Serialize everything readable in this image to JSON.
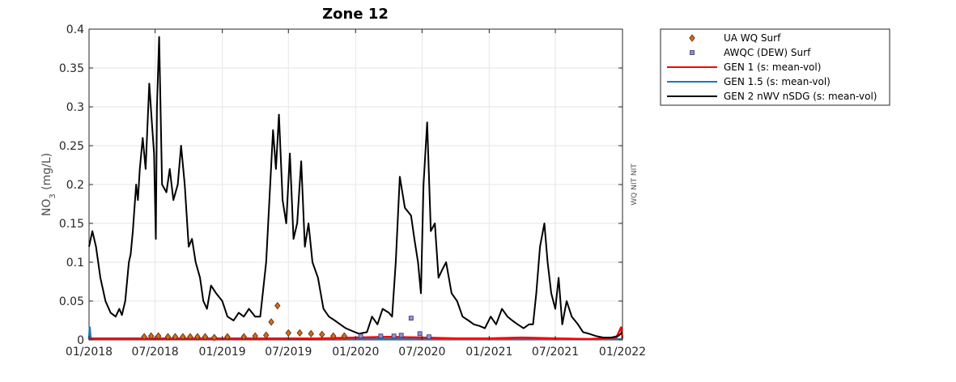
{
  "chart_data": {
    "type": "line",
    "title": "Zone 12",
    "ylabel_base": "NO",
    "ylabel_sub": "3",
    "ylabel_unit": " (mg/L)",
    "side_label": "WQ NIT NIT",
    "ylim": [
      0,
      0.4
    ],
    "yticks": [
      0,
      0.05,
      0.1,
      0.15,
      0.2,
      0.25,
      0.3,
      0.35,
      0.4
    ],
    "ytick_labels": [
      "0",
      "0.05",
      "0.1",
      "0.15",
      "0.2",
      "0.25",
      "0.3",
      "0.35",
      "0.4"
    ],
    "xlim": [
      "2018-01-01",
      "2022-01-01"
    ],
    "xticks": [
      "2018-01-01",
      "2018-07-01",
      "2019-01-01",
      "2019-07-01",
      "2020-01-01",
      "2020-07-01",
      "2021-01-01",
      "2021-07-01",
      "2022-01-01"
    ],
    "xtick_labels": [
      "01/2018",
      "07/2018",
      "01/2019",
      "07/2019",
      "01/2020",
      "07/2020",
      "01/2021",
      "07/2021",
      "01/2022"
    ],
    "grid": true,
    "legend_position": "outside-top-right",
    "series": [
      {
        "name": "UA WQ Surf",
        "kind": "marker-diamond",
        "color": "#d2691e",
        "x": [
          "2018-06-01",
          "2018-06-20",
          "2018-07-10",
          "2018-08-05",
          "2018-08-25",
          "2018-09-15",
          "2018-10-05",
          "2018-10-25",
          "2018-11-15",
          "2018-12-10",
          "2019-01-15",
          "2019-03-01",
          "2019-04-01",
          "2019-05-01",
          "2019-05-15",
          "2019-06-01",
          "2019-07-01",
          "2019-08-01",
          "2019-09-01",
          "2019-10-01",
          "2019-11-01",
          "2019-12-01"
        ],
        "y": [
          0.004,
          0.005,
          0.005,
          0.004,
          0.004,
          0.004,
          0.004,
          0.004,
          0.004,
          0.003,
          0.004,
          0.004,
          0.005,
          0.006,
          0.023,
          0.044,
          0.009,
          0.009,
          0.008,
          0.007,
          0.005,
          0.005
        ]
      },
      {
        "name": "AWQC (DEW) Surf",
        "kind": "marker-square",
        "color": "#8f8fd8",
        "x": [
          "2020-01-15",
          "2020-03-10",
          "2020-04-15",
          "2020-05-05",
          "2020-06-01",
          "2020-06-25",
          "2020-07-20"
        ],
        "y": [
          0.005,
          0.005,
          0.005,
          0.006,
          0.028,
          0.008,
          0.004
        ]
      },
      {
        "name": "GEN 1 (s: mean-vol)",
        "kind": "line",
        "color": "#ff0000",
        "x": [
          "2018-01-01",
          "2019-06-01",
          "2019-10-01",
          "2020-01-01",
          "2020-04-01",
          "2020-07-01",
          "2020-10-01",
          "2021-01-01",
          "2021-04-01",
          "2021-07-01",
          "2021-10-01",
          "2021-12-15",
          "2021-12-28",
          "2022-01-01"
        ],
        "y": [
          0.001,
          0.001,
          0.002,
          0.003,
          0.004,
          0.003,
          0.002,
          0.002,
          0.003,
          0.002,
          0.001,
          0.003,
          0.016,
          0.002
        ]
      },
      {
        "name": "GEN 1.5 (s: mean-vol)",
        "kind": "line",
        "color": "#1f77b4",
        "x": [
          "2018-01-01",
          "2018-01-03",
          "2018-01-05",
          "2018-01-10",
          "2018-02-01",
          "2018-07-01",
          "2019-01-01",
          "2019-07-01",
          "2020-01-01",
          "2020-07-01",
          "2021-01-01",
          "2021-07-01",
          "2022-01-01"
        ],
        "y": [
          0.001,
          0.016,
          0.003,
          0.002,
          0.002,
          0.002,
          0.002,
          0.002,
          0.001,
          0.001,
          0.001,
          0.001,
          0.001
        ]
      },
      {
        "name": "GEN 2 nWV nSDG (s: mean-vol)",
        "kind": "line",
        "color": "#000000",
        "x": [
          "2018-01-01",
          "2018-01-10",
          "2018-01-20",
          "2018-02-01",
          "2018-02-15",
          "2018-03-01",
          "2018-03-15",
          "2018-03-25",
          "2018-04-01",
          "2018-04-10",
          "2018-04-20",
          "2018-04-25",
          "2018-05-01",
          "2018-05-10",
          "2018-05-15",
          "2018-05-20",
          "2018-05-28",
          "2018-06-05",
          "2018-06-15",
          "2018-06-22",
          "2018-06-28",
          "2018-07-03",
          "2018-07-06",
          "2018-07-12",
          "2018-07-20",
          "2018-08-01",
          "2018-08-10",
          "2018-08-20",
          "2018-09-01",
          "2018-09-10",
          "2018-09-20",
          "2018-10-01",
          "2018-10-10",
          "2018-10-20",
          "2018-11-01",
          "2018-11-10",
          "2018-11-20",
          "2018-12-01",
          "2018-12-15",
          "2019-01-01",
          "2019-01-15",
          "2019-02-01",
          "2019-02-15",
          "2019-03-01",
          "2019-03-15",
          "2019-04-01",
          "2019-04-15",
          "2019-05-01",
          "2019-05-10",
          "2019-05-20",
          "2019-05-28",
          "2019-06-05",
          "2019-06-15",
          "2019-06-25",
          "2019-07-05",
          "2019-07-15",
          "2019-07-25",
          "2019-08-05",
          "2019-08-15",
          "2019-08-25",
          "2019-09-05",
          "2019-09-20",
          "2019-10-05",
          "2019-10-20",
          "2019-11-05",
          "2019-11-20",
          "2019-12-05",
          "2019-12-20",
          "2020-01-10",
          "2020-02-01",
          "2020-02-15",
          "2020-03-01",
          "2020-03-15",
          "2020-04-01",
          "2020-04-10",
          "2020-04-20",
          "2020-05-01",
          "2020-05-15",
          "2020-06-01",
          "2020-06-10",
          "2020-06-20",
          "2020-06-28",
          "2020-07-05",
          "2020-07-15",
          "2020-07-25",
          "2020-08-05",
          "2020-08-15",
          "2020-08-25",
          "2020-09-05",
          "2020-09-20",
          "2020-10-05",
          "2020-10-20",
          "2020-11-05",
          "2020-11-20",
          "2020-12-05",
          "2020-12-20",
          "2021-01-05",
          "2021-01-20",
          "2021-02-05",
          "2021-02-20",
          "2021-03-05",
          "2021-03-20",
          "2021-04-05",
          "2021-04-20",
          "2021-05-01",
          "2021-05-10",
          "2021-05-20",
          "2021-06-01",
          "2021-06-10",
          "2021-06-20",
          "2021-07-01",
          "2021-07-10",
          "2021-07-20",
          "2021-08-01",
          "2021-08-15",
          "2021-09-01",
          "2021-09-15",
          "2021-10-01",
          "2021-10-20",
          "2021-11-10",
          "2021-12-01",
          "2021-12-20",
          "2022-01-01"
        ],
        "y": [
          0.12,
          0.14,
          0.12,
          0.08,
          0.05,
          0.035,
          0.03,
          0.04,
          0.032,
          0.05,
          0.1,
          0.11,
          0.14,
          0.2,
          0.18,
          0.22,
          0.26,
          0.22,
          0.33,
          0.28,
          0.24,
          0.13,
          0.3,
          0.39,
          0.2,
          0.19,
          0.22,
          0.18,
          0.2,
          0.25,
          0.2,
          0.12,
          0.13,
          0.1,
          0.08,
          0.05,
          0.04,
          0.07,
          0.06,
          0.05,
          0.03,
          0.025,
          0.035,
          0.03,
          0.04,
          0.03,
          0.03,
          0.1,
          0.18,
          0.27,
          0.22,
          0.29,
          0.18,
          0.15,
          0.24,
          0.13,
          0.15,
          0.23,
          0.12,
          0.15,
          0.1,
          0.08,
          0.04,
          0.03,
          0.025,
          0.02,
          0.015,
          0.012,
          0.008,
          0.01,
          0.03,
          0.02,
          0.04,
          0.035,
          0.03,
          0.1,
          0.21,
          0.17,
          0.16,
          0.13,
          0.1,
          0.06,
          0.2,
          0.28,
          0.14,
          0.15,
          0.08,
          0.09,
          0.1,
          0.06,
          0.05,
          0.03,
          0.025,
          0.02,
          0.018,
          0.015,
          0.03,
          0.02,
          0.04,
          0.03,
          0.025,
          0.02,
          0.015,
          0.02,
          0.02,
          0.06,
          0.12,
          0.15,
          0.1,
          0.06,
          0.04,
          0.08,
          0.02,
          0.05,
          0.03,
          0.02,
          0.01,
          0.008,
          0.005,
          0.003,
          0.003,
          0.005,
          0.01
        ]
      }
    ]
  }
}
